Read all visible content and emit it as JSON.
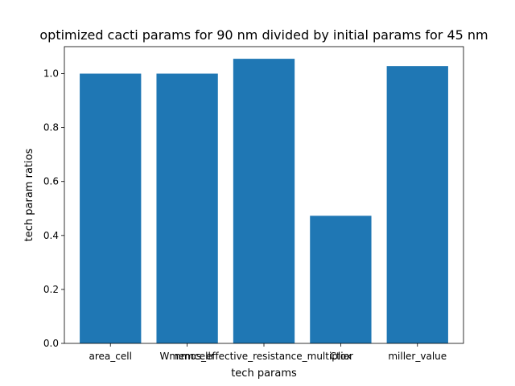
{
  "chart_data": {
    "type": "bar",
    "title": "optimized cacti params for 90 nm divided by initial params for 45 nm",
    "xlabel": "tech params",
    "ylabel": "tech param ratios",
    "categories": [
      "area_cell",
      "Wmemcellr",
      "nmos_effective_resistance_multiplier",
      "Ctox",
      "miller_value"
    ],
    "values": [
      1.0,
      1.0,
      1.055,
      0.473,
      1.028
    ],
    "ylim": [
      0,
      1.1
    ],
    "yticks": [
      0.0,
      0.2,
      0.4,
      0.6,
      0.8,
      1.0
    ],
    "ytick_labels": [
      "0.0",
      "0.2",
      "0.4",
      "0.6",
      "0.8",
      "1.0"
    ],
    "grid": false,
    "bar_color": "#1f77b4"
  }
}
